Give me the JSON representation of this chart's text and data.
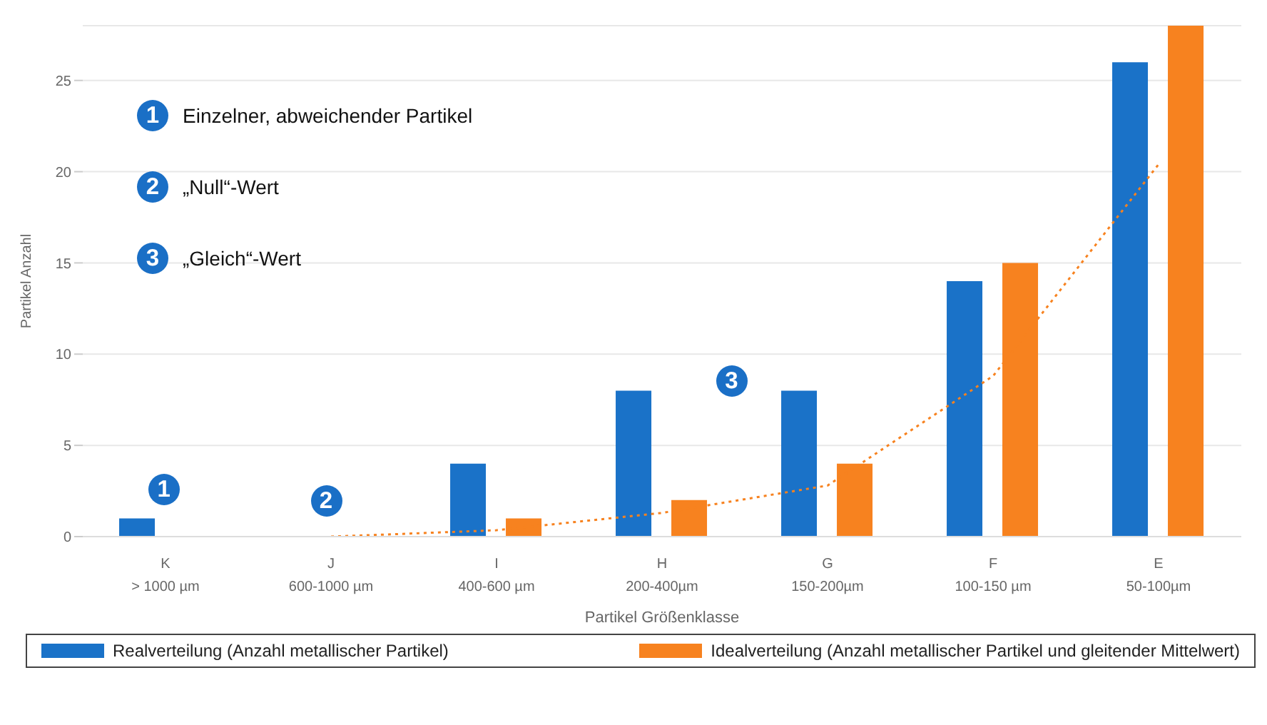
{
  "chart_data": {
    "type": "bar",
    "xlabel": "Partikel Größenklasse",
    "ylabel": "Partikel Anzahl",
    "categories": [
      "K\n> 1000 µm",
      "J\n600-1000 µm",
      "I\n400-600 µm",
      "H\n200-400µm",
      "G\n150-200µm",
      "F\n100-150 µm",
      "E\n50-100µm"
    ],
    "series": [
      {
        "name": "Realverteilung (Anzahl metallischer Partikel)",
        "color": "#1a72c8",
        "values": [
          1,
          0,
          4,
          8,
          8,
          14,
          26
        ]
      },
      {
        "name": "Idealverteilung (Anzahl metallischer Partikel und gleitender Mittelwert)",
        "color": "#f7821f",
        "values": [
          null,
          null,
          1,
          2,
          4,
          15,
          28
        ]
      },
      {
        "type": "line",
        "color": "#f7821f",
        "line_style": "dotted",
        "marker": "none",
        "values": [
          null,
          0,
          0.35,
          1.3,
          2.8,
          8.8,
          20.4
        ]
      }
    ],
    "ylim": [
      0,
      28
    ],
    "yticks": [
      0,
      5,
      10,
      15,
      20,
      25
    ],
    "grid": "y",
    "legend": "bottom",
    "annotations": [
      "Einzelner, abweichender Partikel",
      "„Null“-Wert",
      "„Gleich“-Wert",
      "1",
      "2",
      "3"
    ]
  }
}
